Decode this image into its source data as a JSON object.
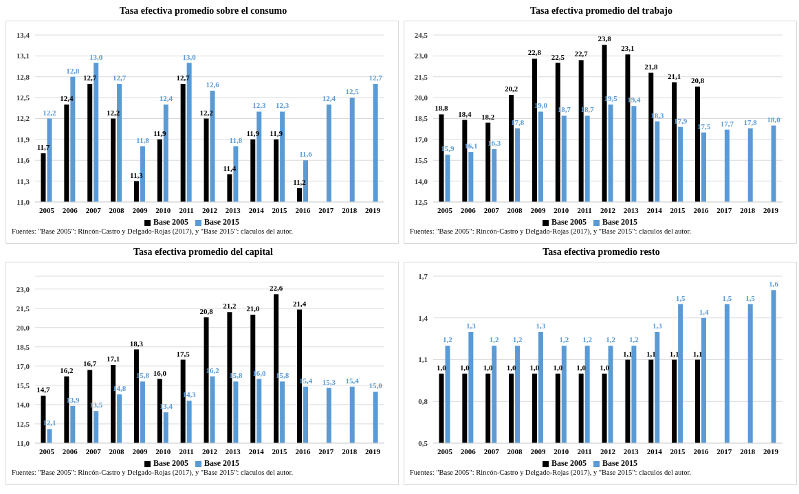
{
  "chart_data": [
    {
      "type": "bar",
      "title": "Tasa efectiva promedio sobre el consumo",
      "categories": [
        "2005",
        "2006",
        "2007",
        "2008",
        "2009",
        "2010",
        "2011",
        "2012",
        "2013",
        "2014",
        "2015",
        "2016",
        "2017",
        "2018",
        "2019"
      ],
      "series": [
        {
          "name": "Base 2005",
          "color": "#000000",
          "values": [
            11.7,
            12.4,
            12.7,
            12.2,
            11.3,
            11.9,
            12.7,
            12.2,
            11.4,
            11.9,
            11.9,
            11.2,
            null,
            null,
            null
          ],
          "value_labels": [
            "11,7",
            "12,4",
            "12,7",
            "12,2",
            "11,3",
            "11,9",
            "12,7",
            "12,2",
            "11,4",
            "11,9",
            "11,9",
            "11,2",
            null,
            null,
            null
          ]
        },
        {
          "name": "Base 2015",
          "color": "#5b9bd5",
          "values": [
            12.2,
            12.8,
            13.0,
            12.7,
            11.8,
            12.4,
            13.0,
            12.6,
            11.8,
            12.3,
            12.3,
            11.6,
            12.4,
            12.5,
            12.7
          ],
          "value_labels": [
            "12,2",
            "12,8",
            "13,0",
            "12,7",
            "11,8",
            "12,4",
            "13,0",
            "12,6",
            "11,8",
            "12,3",
            "12,3",
            "11,6",
            "12,4",
            "12,5",
            "12,7"
          ]
        }
      ],
      "ylim": [
        11,
        13.4
      ],
      "yticks": [
        {
          "value": 11,
          "label": "11,0"
        },
        {
          "value": 11.3,
          "label": "11,3"
        },
        {
          "value": 11.6,
          "label": "11,6"
        },
        {
          "value": 11.9,
          "label": "11,9"
        },
        {
          "value": 12.2,
          "label": "12,2"
        },
        {
          "value": 12.5,
          "label": "12,5"
        },
        {
          "value": 12.8,
          "label": "12,8"
        },
        {
          "value": 13.1,
          "label": "13,1"
        },
        {
          "value": 13.4,
          "label": "13,4"
        }
      ],
      "grid": "y",
      "legend": "bottom",
      "annotations": [
        "Fuentes: \"Base 2005\": Rincón-Castro y Delgado-Rojas (2017), y \"Base 2015\": claculos del autor."
      ]
    },
    {
      "type": "bar",
      "title": "Tasa efectiva promedio del trabajo",
      "categories": [
        "2005",
        "2006",
        "2007",
        "2008",
        "2009",
        "2010",
        "2011",
        "2012",
        "2013",
        "2014",
        "2015",
        "2016",
        "2017",
        "2018",
        "2019"
      ],
      "series": [
        {
          "name": "Base 2005",
          "color": "#000000",
          "values": [
            18.8,
            18.4,
            18.2,
            20.2,
            22.8,
            22.5,
            22.7,
            23.8,
            23.1,
            21.8,
            21.1,
            20.8,
            null,
            null,
            null
          ],
          "value_labels": [
            "18,8",
            "18,4",
            "18,2",
            "20,2",
            "22,8",
            "22,5",
            "22,7",
            "23,8",
            "23,1",
            "21,8",
            "21,1",
            "20,8",
            null,
            null,
            null
          ]
        },
        {
          "name": "Base 2015",
          "color": "#5b9bd5",
          "values": [
            15.9,
            16.1,
            16.3,
            17.8,
            19.0,
            18.7,
            18.7,
            19.5,
            19.4,
            18.3,
            17.9,
            17.5,
            17.7,
            17.8,
            18.0
          ],
          "value_labels": [
            "15,9",
            "16,1",
            "16,3",
            "17,8",
            "19,0",
            "18,7",
            "18,7",
            "19,5",
            "19,4",
            "18,3",
            "17,9",
            "17,5",
            "17,7",
            "17,8",
            "18,0"
          ]
        }
      ],
      "ylim": [
        12.5,
        24.5
      ],
      "yticks": [
        {
          "value": 12.5,
          "label": "12,5"
        },
        {
          "value": 14,
          "label": "14,0"
        },
        {
          "value": 15.5,
          "label": "15,5"
        },
        {
          "value": 17,
          "label": "17,0"
        },
        {
          "value": 18.5,
          "label": "18,5"
        },
        {
          "value": 20,
          "label": "20,0"
        },
        {
          "value": 21.5,
          "label": "21,5"
        },
        {
          "value": 23,
          "label": "23,0"
        },
        {
          "value": 24.5,
          "label": "24,5"
        }
      ],
      "grid": "y",
      "legend": "bottom",
      "annotations": [
        "Fuentes: \"Base 2005\": Rincón-Castro y Delgado-Rojas (2017), y \"Base 2015\": claculos del autor."
      ]
    },
    {
      "type": "bar",
      "title": "Tasa efectiva promedio del capital",
      "categories": [
        "2005",
        "2006",
        "2007",
        "2008",
        "2009",
        "2010",
        "2011",
        "2012",
        "2013",
        "2014",
        "2015",
        "2016",
        "2017",
        "2018",
        "2019"
      ],
      "series": [
        {
          "name": "Base 2005",
          "color": "#000000",
          "values": [
            14.7,
            16.2,
            16.7,
            17.1,
            18.3,
            16.0,
            17.5,
            20.8,
            21.2,
            21.0,
            22.6,
            21.4,
            null,
            null,
            null
          ],
          "value_labels": [
            "14,7",
            "16,2",
            "16,7",
            "17,1",
            "18,3",
            "16,0",
            "17,5",
            "20,8",
            "21,2",
            "21,0",
            "22,6",
            "21,4",
            null,
            null,
            null
          ]
        },
        {
          "name": "Base 2015",
          "color": "#5b9bd5",
          "values": [
            12.1,
            13.9,
            13.5,
            14.8,
            15.8,
            13.4,
            14.3,
            16.2,
            15.8,
            16.0,
            15.8,
            15.4,
            15.3,
            15.4,
            15.0
          ],
          "value_labels": [
            "12,1",
            "13,9",
            "13,5",
            "14,8",
            "15,8",
            "13,4",
            "14,3",
            "16,2",
            "15,8",
            "16,0",
            "15,8",
            "15,4",
            "15,3",
            "15,4",
            "15,0"
          ]
        }
      ],
      "ylim": [
        11,
        24
      ],
      "yticks": [
        {
          "value": 11,
          "label": "11,0"
        },
        {
          "value": 12.5,
          "label": "12,5"
        },
        {
          "value": 14,
          "label": "14,0"
        },
        {
          "value": 15.5,
          "label": "15,5"
        },
        {
          "value": 17,
          "label": "17,0"
        },
        {
          "value": 18.5,
          "label": "18,5"
        },
        {
          "value": 20,
          "label": "20,0"
        },
        {
          "value": 21.5,
          "label": "21,5"
        },
        {
          "value": 23,
          "label": "23,0"
        }
      ],
      "grid": "y",
      "legend": "bottom",
      "annotations": [
        "Fuentes: \"Base 2005\": Rincón-Castro y Delgado-Rojas (2017), y \"Base 2015\": claculos del autor."
      ]
    },
    {
      "type": "bar",
      "title": "Tasa efectiva promedio resto",
      "categories": [
        "2005",
        "2006",
        "2007",
        "2008",
        "2009",
        "2010",
        "2011",
        "2012",
        "2013",
        "2014",
        "2015",
        "2016",
        "2017",
        "2018",
        "2019"
      ],
      "series": [
        {
          "name": "Base 2005",
          "color": "#000000",
          "values": [
            1.0,
            1.0,
            1.0,
            1.0,
            1.0,
            1.0,
            1.0,
            1.0,
            1.1,
            1.1,
            1.1,
            1.1,
            null,
            null,
            null
          ],
          "value_labels": [
            "1,0",
            "1,0",
            "1,0",
            "1,0",
            "1,0",
            "1,0",
            "1,0",
            "1,0",
            "1,1",
            "1,1",
            "1,1",
            "1,1",
            null,
            null,
            null
          ]
        },
        {
          "name": "Base 2015",
          "color": "#5b9bd5",
          "values": [
            1.2,
            1.3,
            1.2,
            1.2,
            1.3,
            1.2,
            1.2,
            1.2,
            1.2,
            1.3,
            1.5,
            1.4,
            1.5,
            1.5,
            1.6
          ],
          "value_labels": [
            "1,2",
            "1,3",
            "1,2",
            "1,2",
            "1,3",
            "1,2",
            "1,2",
            "1,2",
            "1,2",
            "1,3",
            "1,5",
            "1,4",
            "1,5",
            "1,5",
            "1,6"
          ]
        }
      ],
      "ylim": [
        0.5,
        1.7
      ],
      "yticks": [
        {
          "value": 0.5,
          "label": "0,5"
        },
        {
          "value": 0.8,
          "label": "0,8"
        },
        {
          "value": 1.1,
          "label": "1,1"
        },
        {
          "value": 1.4,
          "label": "1,4"
        },
        {
          "value": 1.7,
          "label": "1,7"
        }
      ],
      "grid": "y",
      "legend": "bottom",
      "annotations": [
        "Fuentes: \"Base 2005\": Rincón-Castro y Delgado-Rojas (2017), y \"Base 2015\": claculos del autor."
      ]
    }
  ]
}
